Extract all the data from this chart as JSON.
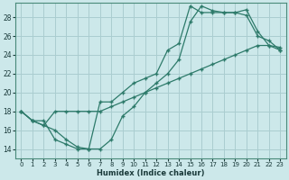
{
  "xlabel": "Humidex (Indice chaleur)",
  "bg_color": "#cce8ea",
  "grid_color": "#aacdd0",
  "line_color": "#2d7a6a",
  "xlim": [
    -0.5,
    23.5
  ],
  "ylim": [
    13.0,
    29.5
  ],
  "xticks": [
    0,
    1,
    2,
    3,
    4,
    5,
    6,
    7,
    8,
    9,
    10,
    11,
    12,
    13,
    14,
    15,
    16,
    17,
    18,
    19,
    20,
    21,
    22,
    23
  ],
  "yticks": [
    14,
    16,
    18,
    20,
    22,
    24,
    26,
    28
  ],
  "line1_x": [
    0,
    1,
    2,
    3,
    4,
    5,
    6,
    7,
    8,
    9,
    10,
    11,
    12,
    13,
    14,
    15,
    16,
    17,
    18,
    19,
    20,
    21,
    22,
    23
  ],
  "line1_y": [
    18,
    17,
    17,
    15,
    14.5,
    14,
    14,
    19,
    19,
    20,
    21,
    21.5,
    22,
    24.5,
    25.2,
    29.2,
    28.5,
    28.5,
    28.5,
    28.5,
    28.2,
    26.0,
    25.5,
    24.5
  ],
  "line2_x": [
    0,
    1,
    2,
    3,
    4,
    5,
    6,
    7,
    8,
    9,
    10,
    11,
    12,
    13,
    14,
    15,
    16,
    17,
    18,
    19,
    20,
    21,
    22,
    23
  ],
  "line2_y": [
    18,
    17,
    16.5,
    16,
    15,
    14.2,
    14,
    14,
    15,
    17.5,
    18.5,
    20,
    21,
    22,
    23.5,
    27.5,
    29.2,
    28.7,
    28.5,
    28.5,
    28.8,
    26.5,
    25.0,
    24.8
  ],
  "line3_x": [
    0,
    1,
    2,
    3,
    4,
    5,
    6,
    7,
    8,
    9,
    10,
    11,
    12,
    13,
    14,
    15,
    16,
    17,
    18,
    19,
    20,
    21,
    22,
    23
  ],
  "line3_y": [
    18,
    17,
    16.5,
    18,
    18,
    18,
    18,
    18,
    18.5,
    19,
    19.5,
    20,
    20.5,
    21,
    21.5,
    22,
    22.5,
    23,
    23.5,
    24,
    24.5,
    25,
    25,
    24.5
  ]
}
